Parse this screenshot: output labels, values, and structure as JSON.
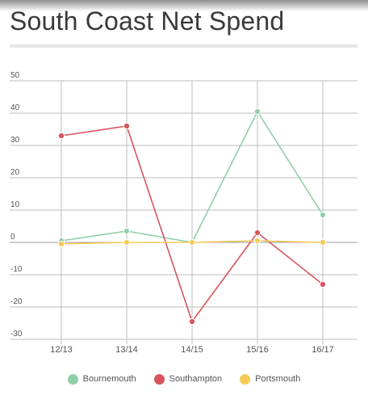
{
  "chart_data": {
    "type": "line",
    "title": "South Coast Net Spend",
    "categories": [
      "12/13",
      "13/14",
      "14/15",
      "15/16",
      "16/17"
    ],
    "ylim": [
      -30,
      50
    ],
    "yticks": [
      50,
      40,
      30,
      20,
      10,
      0,
      -10,
      -20,
      -30
    ],
    "grid": true,
    "legend_position": "bottom",
    "series": [
      {
        "name": "Bournemouth",
        "color": "#8fcfaa",
        "values": [
          0.5,
          3.5,
          0,
          40.5,
          8.5
        ]
      },
      {
        "name": "Southampton",
        "color": "#d9545c",
        "values": [
          33,
          36,
          -24.5,
          3,
          -13
        ]
      },
      {
        "name": "Portsmouth",
        "color": "#f5cc5a",
        "values": [
          -0.5,
          0,
          0,
          0.5,
          0
        ]
      }
    ]
  }
}
